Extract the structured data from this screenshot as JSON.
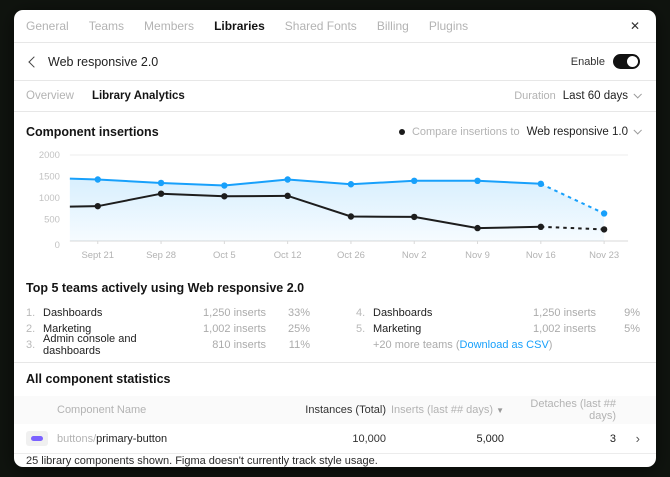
{
  "nav": {
    "items": [
      {
        "label": "General"
      },
      {
        "label": "Teams"
      },
      {
        "label": "Members"
      },
      {
        "label": "Libraries"
      },
      {
        "label": "Shared Fonts"
      },
      {
        "label": "Billing"
      },
      {
        "label": "Plugins"
      }
    ],
    "close_icon": "✕"
  },
  "header": {
    "title": "Web responsive 2.0",
    "enable_label": "Enable",
    "toggle_on_color": "#111111"
  },
  "tabs": {
    "overview": "Overview",
    "analytics": "Library Analytics",
    "duration_label": "Duration",
    "duration_value": "Last 60 days"
  },
  "insertions": {
    "title": "Component insertions",
    "legend_dot_color": "#1a1a1a",
    "compare_label": "Compare insertions to",
    "compare_value": "Web responsive 1.0"
  },
  "chart_data": {
    "type": "line",
    "title": "Component insertions",
    "categories": [
      "Sept 21",
      "Sep 28",
      "Oct 5",
      "Oct 12",
      "Oct 26",
      "Nov 2",
      "Nov 9",
      "Nov 16",
      "Nov 23"
    ],
    "ylim": [
      0,
      2000
    ],
    "y_ticks": [
      0,
      500,
      1000,
      1500,
      2000
    ],
    "grid": "top-line-and-baseline-only",
    "legend_position": "top-right",
    "dash_from_index": 7,
    "series": [
      {
        "name": "Web responsive 2.0",
        "color": "#18a0fb",
        "area": true,
        "lead_in_value": 1450,
        "values": [
          1430,
          1350,
          1290,
          1430,
          1320,
          1400,
          1400,
          1330,
          640
        ]
      },
      {
        "name": "Web responsive 1.0",
        "color": "#1d1d1d",
        "area": false,
        "lead_in_value": 800,
        "values": [
          810,
          1100,
          1040,
          1050,
          570,
          560,
          300,
          330,
          270
        ]
      }
    ]
  },
  "teams": {
    "title": "Top 5 teams actively using Web responsive 2.0",
    "left": [
      {
        "rank": "1.",
        "name": "Dashboards",
        "inserts": "1,250 inserts",
        "pct": "33%"
      },
      {
        "rank": "2.",
        "name": "Marketing",
        "inserts": "1,002 inserts",
        "pct": "25%"
      },
      {
        "rank": "3.",
        "name": "Admin console and dashboards",
        "inserts": "810 inserts",
        "pct": "11%"
      }
    ],
    "right": [
      {
        "rank": "4.",
        "name": "Dashboards",
        "inserts": "1,250 inserts",
        "pct": "9%"
      },
      {
        "rank": "5.",
        "name": "Marketing",
        "inserts": "1,002 inserts",
        "pct": "5%"
      }
    ],
    "more_prefix": "+20 more teams (",
    "more_link": "Download as CSV",
    "more_suffix": ")"
  },
  "stats": {
    "title": "All component statistics",
    "columns": {
      "name": "Component Name",
      "instances": "Instances (Total)",
      "inserts": "Inserts (last ## days)",
      "sort_icon": "▼",
      "detaches": "Detaches (last ## days)"
    },
    "row": {
      "path": "buttons/",
      "name": "primary-button",
      "instances": "10,000",
      "inserts": "5,000",
      "detaches": "3",
      "chevron": "›",
      "thumb_color": "#7b61ff"
    },
    "footer": "25 library components shown. Figma doesn't currently track style usage."
  }
}
